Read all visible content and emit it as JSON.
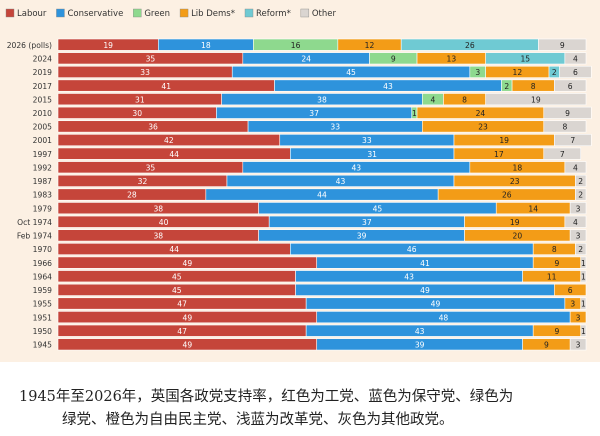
{
  "chart_data": {
    "type": "bar",
    "orientation": "horizontal",
    "stacked": true,
    "grid": false,
    "legend_position": "top-left",
    "categories": [
      "2026 (polls)",
      "2024",
      "2019",
      "2017",
      "2015",
      "2010",
      "2005",
      "2001",
      "1997",
      "1992",
      "1987",
      "1983",
      "1979",
      "Oct 1974",
      "Feb 1974",
      "1970",
      "1966",
      "1964",
      "1959",
      "1955",
      "1951",
      "1950",
      "1945"
    ],
    "series": [
      {
        "name": "Labour",
        "color": "#c5453a",
        "values": [
          19,
          35,
          33,
          41,
          31,
          30,
          36,
          42,
          44,
          35,
          32,
          28,
          38,
          40,
          38,
          44,
          49,
          45,
          45,
          47,
          49,
          47,
          49
        ]
      },
      {
        "name": "Conservative",
        "color": "#2e93dc",
        "values": [
          18,
          24,
          45,
          43,
          38,
          37,
          33,
          33,
          31,
          43,
          43,
          44,
          45,
          37,
          39,
          46,
          41,
          43,
          49,
          49,
          48,
          43,
          39
        ]
      },
      {
        "name": "Green",
        "color": "#8ed98e",
        "values": [
          16,
          9,
          3,
          2,
          4,
          1,
          0,
          0,
          0,
          0,
          0,
          0,
          0,
          0,
          0,
          0,
          0,
          0,
          0,
          0,
          0,
          0,
          0
        ]
      },
      {
        "name": "Lib Dems*",
        "color": "#f39c17",
        "values": [
          12,
          13,
          12,
          8,
          8,
          24,
          23,
          19,
          17,
          18,
          23,
          26,
          14,
          19,
          20,
          8,
          9,
          11,
          6,
          3,
          3,
          9,
          9
        ]
      },
      {
        "name": "Reform*",
        "color": "#6fcad3",
        "values": [
          0,
          0,
          0,
          0,
          0,
          0,
          0,
          0,
          0,
          0,
          0,
          0,
          0,
          0,
          0,
          0,
          0,
          0,
          0,
          0,
          0,
          0,
          0
        ]
      },
      {
        "name": "Other",
        "color": "#dad5d1",
        "values": [
          9,
          4,
          6,
          6,
          19,
          9,
          8,
          7,
          7,
          4,
          2,
          2,
          3,
          4,
          3,
          2,
          1,
          1,
          0,
          1,
          0,
          1,
          3
        ]
      }
    ],
    "extra_segments": {
      "2026 (polls)": {
        "series": "Reform*",
        "value": 26
      },
      "2024": {
        "series": "Reform*",
        "value": 15
      },
      "2019": {
        "series": "Reform*",
        "value": 2
      }
    },
    "xlim": [
      0,
      100
    ]
  },
  "caption": {
    "line1": "1945年至2026年，英国各政党支持率，红色为工党、蓝色为保守党、绿色为",
    "line2": "绿党、橙色为自由民主党、浅蓝为改革党、灰色为其他政党。"
  }
}
